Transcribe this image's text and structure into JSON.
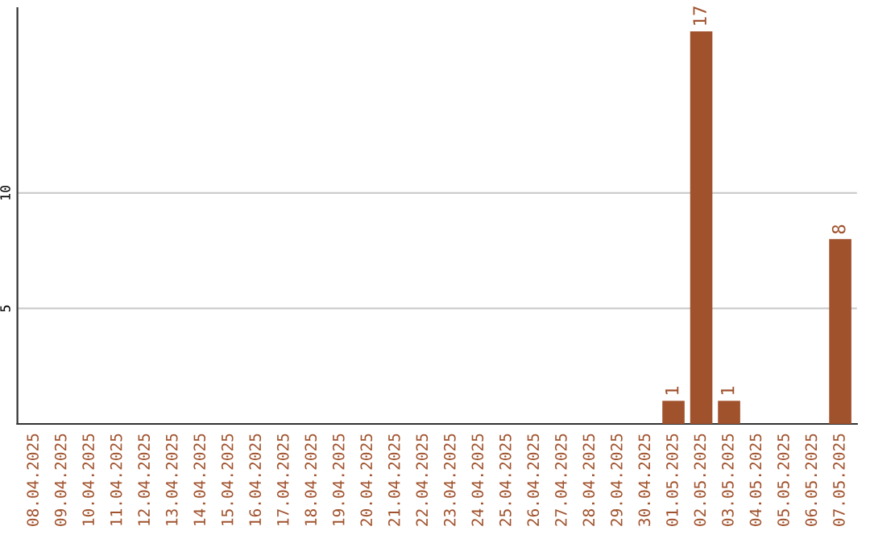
{
  "chart_data": {
    "type": "bar",
    "categories": [
      "08.04.2025",
      "09.04.2025",
      "10.04.2025",
      "11.04.2025",
      "12.04.2025",
      "13.04.2025",
      "14.04.2025",
      "15.04.2025",
      "16.04.2025",
      "17.04.2025",
      "18.04.2025",
      "19.04.2025",
      "20.04.2025",
      "21.04.2025",
      "22.04.2025",
      "23.04.2025",
      "24.04.2025",
      "25.04.2025",
      "26.04.2025",
      "27.04.2025",
      "28.04.2025",
      "29.04.2025",
      "30.04.2025",
      "01.05.2025",
      "02.05.2025",
      "03.05.2025",
      "04.05.2025",
      "05.05.2025",
      "06.05.2025",
      "07.05.2025"
    ],
    "values": [
      0,
      0,
      0,
      0,
      0,
      0,
      0,
      0,
      0,
      0,
      0,
      0,
      0,
      0,
      0,
      0,
      0,
      0,
      0,
      0,
      0,
      0,
      0,
      1,
      17,
      1,
      0,
      0,
      0,
      8
    ],
    "value_labels": [
      null,
      null,
      null,
      null,
      null,
      null,
      null,
      null,
      null,
      null,
      null,
      null,
      null,
      null,
      null,
      null,
      null,
      null,
      null,
      null,
      null,
      null,
      null,
      "1",
      "17",
      "1",
      null,
      null,
      null,
      "8"
    ],
    "color": "#a0522d",
    "ylim": [
      0,
      18
    ],
    "yticks": [
      5,
      10
    ],
    "grid": "y"
  }
}
